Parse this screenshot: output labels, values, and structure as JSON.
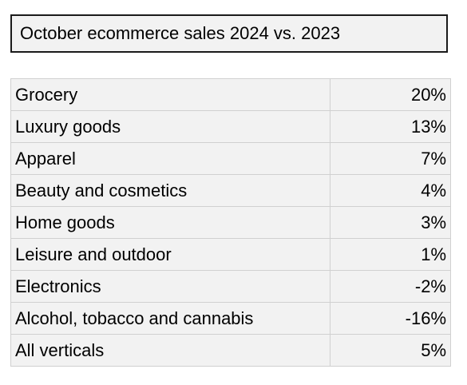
{
  "chart_data": {
    "type": "table",
    "title": "October ecommerce sales 2024 vs. 2023",
    "rows": [
      {
        "category": "Grocery",
        "value": "20%"
      },
      {
        "category": "Luxury goods",
        "value": "13%"
      },
      {
        "category": "Apparel",
        "value": "7%"
      },
      {
        "category": "Beauty and cosmetics",
        "value": "4%"
      },
      {
        "category": "Home goods",
        "value": "3%"
      },
      {
        "category": "Leisure and outdoor",
        "value": "1%"
      },
      {
        "category": "Electronics",
        "value": "-2%"
      },
      {
        "category": "Alcohol, tobacco and cannabis",
        "value": "-16%"
      },
      {
        "category": "All verticals",
        "value": "5%"
      }
    ]
  },
  "colors": {
    "cell_background": "#f2f2f2",
    "grid_line": "#d0d0d0",
    "title_border": "#1a1a1a"
  }
}
